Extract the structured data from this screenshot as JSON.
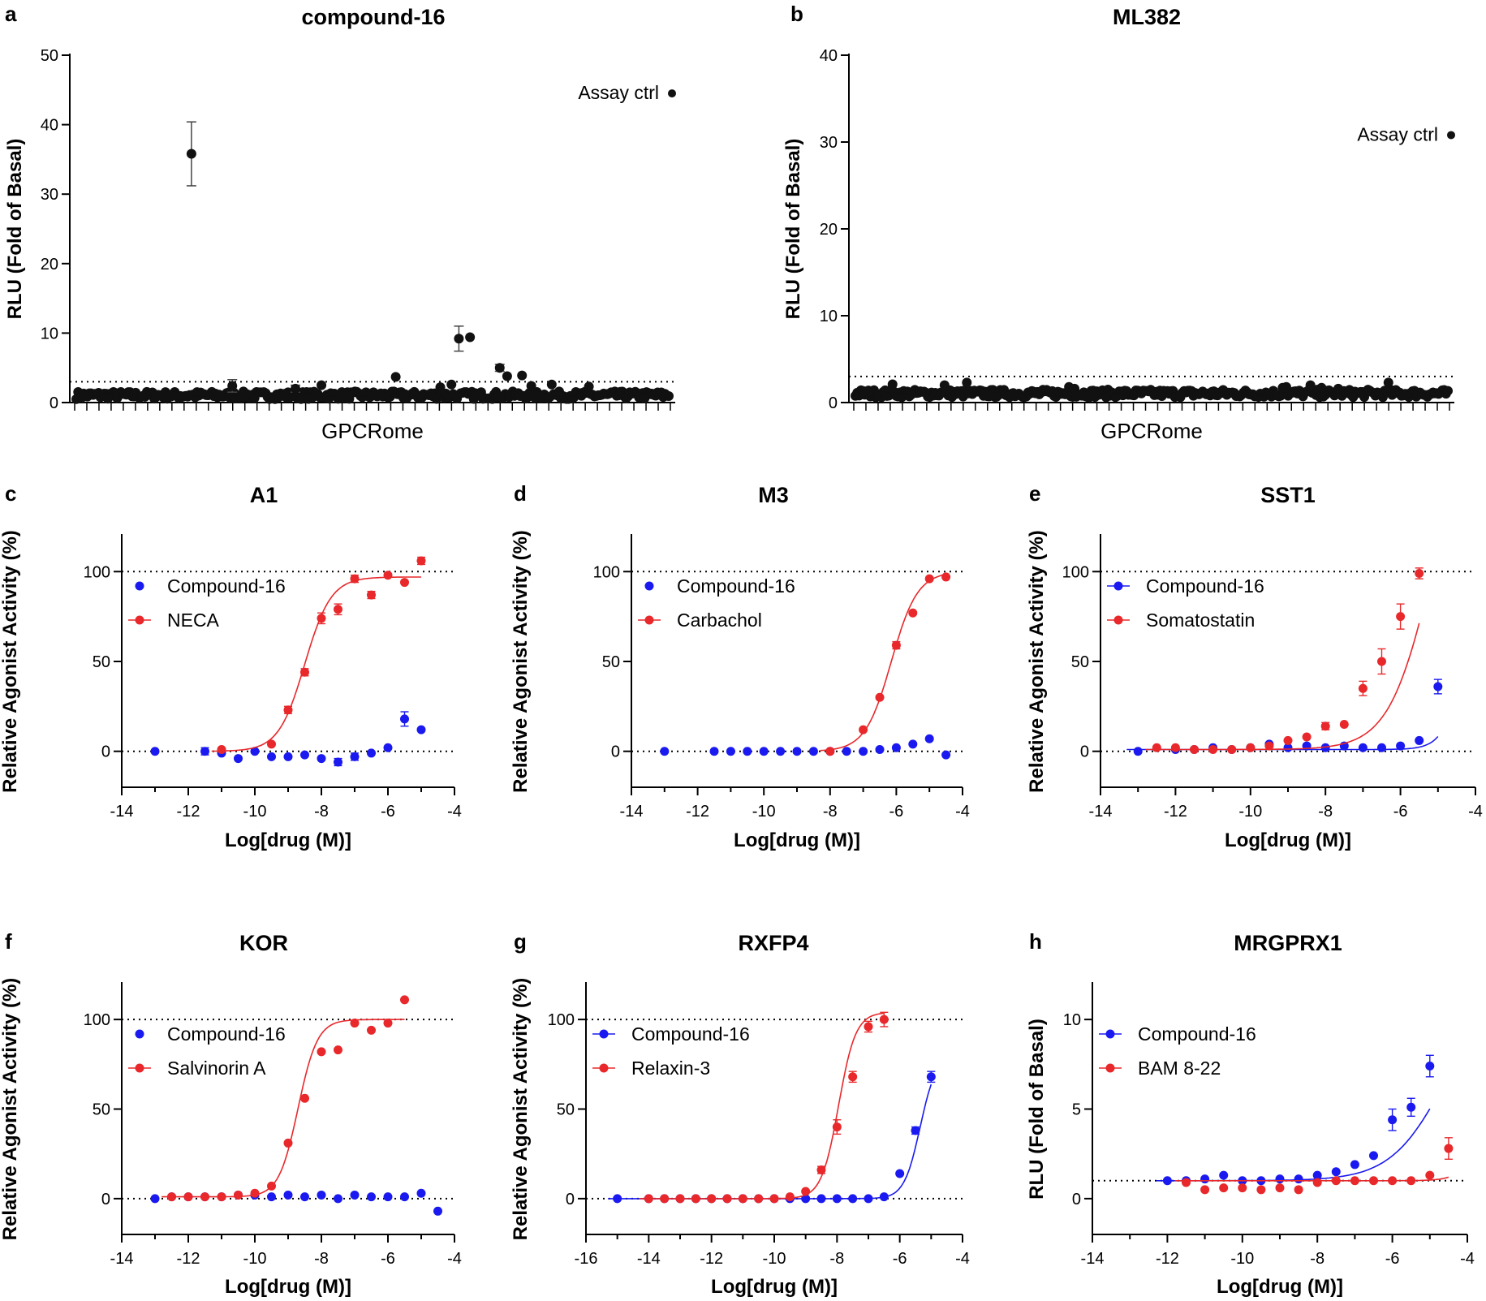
{
  "chart_data": [
    {
      "type": "scatter",
      "panel": "a",
      "title": "compound-16",
      "xlabel": "GPCRome",
      "ylabel": "RLU (Fold of Basal)",
      "ylim": [
        0,
        50
      ],
      "yticks": [
        0,
        10,
        20,
        30,
        40,
        50
      ],
      "reference_line": 3,
      "n_receptors": 320,
      "baseline_range": [
        0.5,
        1.6
      ],
      "notable_points": [
        {
          "index": 62,
          "y": 35.8,
          "err": 4.6
        },
        {
          "index": 84,
          "y": 2.4,
          "err": 0.9
        },
        {
          "index": 118,
          "y": 2.0,
          "err": 0.5
        },
        {
          "index": 132,
          "y": 2.5
        },
        {
          "index": 172,
          "y": 3.7
        },
        {
          "index": 196,
          "y": 2.2
        },
        {
          "index": 202,
          "y": 2.6
        },
        {
          "index": 206,
          "y": 9.2,
          "err": 1.8
        },
        {
          "index": 212,
          "y": 9.4
        },
        {
          "index": 228,
          "y": 5.0,
          "err": 0.5
        },
        {
          "index": 232,
          "y": 3.8
        },
        {
          "index": 240,
          "y": 3.9
        },
        {
          "index": 245,
          "y": 2.4
        },
        {
          "index": 256,
          "y": 2.6
        },
        {
          "index": 276,
          "y": 2.3
        }
      ],
      "annotation": {
        "text": "Assay ctrl",
        "y": 44.5,
        "err": 0.5
      }
    },
    {
      "type": "scatter",
      "panel": "b",
      "title": "ML382",
      "xlabel": "GPCRome",
      "ylabel": "RLU (Fold of Basal)",
      "ylim": [
        0,
        40
      ],
      "yticks": [
        0,
        10,
        20,
        30,
        40
      ],
      "reference_line": 3,
      "n_receptors": 320,
      "baseline_range": [
        0.6,
        1.5
      ],
      "notable_points": [
        {
          "index": 20,
          "y": 2.1
        },
        {
          "index": 48,
          "y": 2.0
        },
        {
          "index": 60,
          "y": 2.3
        },
        {
          "index": 115,
          "y": 1.8
        },
        {
          "index": 118,
          "y": 1.6
        },
        {
          "index": 232,
          "y": 1.8
        },
        {
          "index": 230,
          "y": 1.7
        },
        {
          "index": 245,
          "y": 2.0
        },
        {
          "index": 251,
          "y": 1.7
        },
        {
          "index": 260,
          "y": 1.6
        },
        {
          "index": 287,
          "y": 2.3
        }
      ],
      "annotation": {
        "text": "Assay ctrl",
        "y": 30.8
      }
    },
    {
      "type": "line",
      "panel": "c",
      "title": "A1",
      "xlabel": "Log[drug (M)]",
      "ylabel": "Relative Agonist Activity (%)",
      "xlim": [
        -14,
        -4
      ],
      "ylim": [
        -20,
        120
      ],
      "xticks": [
        -14,
        -12,
        -10,
        -8,
        -6,
        -4
      ],
      "yticks": [
        0,
        50,
        100
      ],
      "reference_lines": [
        0,
        100
      ],
      "series": [
        {
          "name": "Compound-16",
          "color": "#1a1af0",
          "legend_line": false,
          "x": [
            -13,
            -11.5,
            -11,
            -10.5,
            -10,
            -9.5,
            -9,
            -8.5,
            -8,
            -7.5,
            -7,
            -6.5,
            -6,
            -5.5,
            -5
          ],
          "y": [
            0,
            0,
            -1,
            -4,
            0,
            -3,
            -3,
            -2,
            -4,
            -6,
            -3,
            -1,
            2,
            18,
            12
          ],
          "err": [
            0,
            2,
            0,
            0,
            0,
            0,
            0,
            0,
            0,
            2,
            2,
            0,
            0,
            4,
            0
          ]
        },
        {
          "name": "NECA",
          "color": "#e8282b",
          "legend_line": true,
          "x": [
            -11,
            -9.5,
            -9,
            -8.5,
            -8,
            -7.5,
            -7,
            -6.5,
            -6,
            -5.5,
            -5
          ],
          "y": [
            1,
            4,
            23,
            44,
            74,
            79,
            96,
            87,
            98,
            94,
            106
          ],
          "err": [
            0,
            0,
            2,
            2,
            3,
            3,
            2,
            2,
            0,
            0,
            2
          ],
          "fit": {
            "bottom": 0,
            "top": 97,
            "logec50": -8.5,
            "hill": 1.1
          }
        }
      ]
    },
    {
      "type": "line",
      "panel": "d",
      "title": "M3",
      "xlabel": "Log[drug (M)]",
      "ylabel": "Relative Agonist Activity (%)",
      "xlim": [
        -14,
        -4
      ],
      "ylim": [
        -20,
        120
      ],
      "xticks": [
        -14,
        -12,
        -10,
        -8,
        -6,
        -4
      ],
      "yticks": [
        0,
        50,
        100
      ],
      "reference_lines": [
        0,
        100
      ],
      "series": [
        {
          "name": "Compound-16",
          "color": "#1a1af0",
          "legend_line": false,
          "x": [
            -13,
            -11.5,
            -11,
            -10.5,
            -10,
            -9.5,
            -9,
            -8.5,
            -8,
            -7.5,
            -7,
            -6.5,
            -6,
            -5.5,
            -5,
            -4.5
          ],
          "y": [
            0,
            0,
            0,
            0,
            0,
            0,
            0,
            0,
            0,
            0,
            0,
            1,
            2,
            4,
            7,
            -2
          ],
          "err": []
        },
        {
          "name": "Carbachol",
          "color": "#e8282b",
          "legend_line": true,
          "x": [
            -8,
            -7,
            -6.5,
            -6,
            -5.5,
            -5,
            -4.5
          ],
          "y": [
            0,
            12,
            30,
            59,
            77,
            96,
            97
          ],
          "err": [
            0,
            0,
            0,
            2,
            0,
            0,
            0
          ],
          "fit": {
            "bottom": 0,
            "top": 100,
            "logec50": -6.15,
            "hill": 1.1
          }
        }
      ]
    },
    {
      "type": "line",
      "panel": "e",
      "title": "SST1",
      "xlabel": "Log[drug (M)]",
      "ylabel": "Relative Agonist Activity (%)",
      "xlim": [
        -14,
        -4
      ],
      "ylim": [
        -20,
        120
      ],
      "xticks": [
        -14,
        -12,
        -10,
        -8,
        -6,
        -4
      ],
      "yticks": [
        0,
        50,
        100
      ],
      "reference_lines": [
        0,
        100
      ],
      "series": [
        {
          "name": "Compound-16",
          "color": "#1a1af0",
          "legend_line": true,
          "x": [
            -13,
            -12,
            -11.5,
            -11,
            -10.5,
            -10,
            -9.5,
            -9,
            -8.5,
            -8,
            -7.5,
            -7,
            -6.5,
            -6,
            -5.5,
            -5
          ],
          "y": [
            0,
            1,
            1,
            2,
            1,
            2,
            4,
            2,
            3,
            2,
            3,
            2,
            2,
            3,
            6,
            36
          ],
          "err": [
            0,
            0,
            0,
            0,
            0,
            0,
            0,
            0,
            0,
            0,
            0,
            0,
            0,
            0,
            0,
            4
          ],
          "fit": {
            "bottom": 1,
            "top": 200,
            "logec50": -4.05,
            "hill": 1.5
          }
        },
        {
          "name": "Somatostatin",
          "color": "#e8282b",
          "legend_line": true,
          "x": [
            -12.5,
            -12,
            -11.5,
            -11,
            -10.5,
            -10,
            -9.5,
            -9,
            -8.5,
            -8,
            -7.5,
            -7,
            -6.5,
            -6,
            -5.5
          ],
          "y": [
            2,
            2,
            1,
            1,
            1,
            2,
            3,
            6,
            8,
            14,
            15,
            35,
            50,
            75,
            99
          ],
          "err": [
            0,
            0,
            0,
            0,
            0,
            0,
            0,
            0,
            0,
            2,
            0,
            4,
            7,
            7,
            3
          ],
          "fit": {
            "bottom": 1,
            "top": 200,
            "logec50": -5.15,
            "hill": 0.75
          }
        }
      ]
    },
    {
      "type": "line",
      "panel": "f",
      "title": "KOR",
      "xlabel": "Log[drug (M)]",
      "ylabel": "Relative Agonist Activity (%)",
      "xlim": [
        -14,
        -4
      ],
      "ylim": [
        -20,
        120
      ],
      "xticks": [
        -14,
        -12,
        -10,
        -8,
        -6,
        -4
      ],
      "yticks": [
        0,
        50,
        100
      ],
      "reference_lines": [
        0,
        100
      ],
      "series": [
        {
          "name": "Compound-16",
          "color": "#1a1af0",
          "legend_line": false,
          "x": [
            -13,
            -12.5,
            -12,
            -11.5,
            -11,
            -10.5,
            -10,
            -9.5,
            -9,
            -8.5,
            -8,
            -7.5,
            -7,
            -6.5,
            -6,
            -5.5,
            -5,
            -4.5
          ],
          "y": [
            0,
            1,
            1,
            1,
            1,
            2,
            2,
            1,
            2,
            1,
            2,
            0,
            2,
            1,
            1,
            1,
            3,
            -7
          ],
          "err": []
        },
        {
          "name": "Salvinorin A",
          "color": "#e8282b",
          "legend_line": true,
          "x": [
            -12.5,
            -12,
            -11.5,
            -11,
            -10.5,
            -10,
            -9.5,
            -9,
            -8.5,
            -8,
            -7.5,
            -7,
            -6.5,
            -6,
            -5.5
          ],
          "y": [
            1,
            1,
            1,
            1,
            2,
            3,
            7,
            31,
            56,
            82,
            83,
            98,
            94,
            98,
            111
          ],
          "err": [],
          "fit": {
            "bottom": 1,
            "top": 100,
            "logec50": -8.7,
            "hill": 1.5
          }
        }
      ]
    },
    {
      "type": "line",
      "panel": "g",
      "title": "RXFP4",
      "xlabel": "Log[drug (M)]",
      "ylabel": "Relative Agonist Activity (%)",
      "xlim": [
        -16,
        -4
      ],
      "ylim": [
        -20,
        120
      ],
      "xticks": [
        -16,
        -14,
        -12,
        -10,
        -8,
        -6,
        -4
      ],
      "yticks": [
        0,
        50,
        100
      ],
      "reference_lines": [
        0,
        100
      ],
      "series": [
        {
          "name": "Compound-16",
          "color": "#1a1af0",
          "legend_line": true,
          "x": [
            -15,
            -14,
            -13.5,
            -13,
            -12.5,
            -12,
            -11.5,
            -11,
            -10.5,
            -10,
            -9.5,
            -9,
            -8.5,
            -8,
            -7.5,
            -7,
            -6.5,
            -6,
            -5.5,
            -5
          ],
          "y": [
            0,
            0,
            0,
            0,
            0,
            0,
            0,
            0,
            0,
            0,
            0,
            0,
            0,
            0,
            0,
            0,
            1,
            14,
            38,
            68
          ],
          "err": [
            0,
            0,
            0,
            0,
            0,
            0,
            0,
            0,
            0,
            0,
            0,
            0,
            0,
            0,
            0,
            0,
            0,
            0,
            2,
            3
          ],
          "fit": {
            "bottom": 0,
            "top": 80,
            "logec50": -5.35,
            "hill": 1.7
          }
        },
        {
          "name": "Relaxin-3",
          "color": "#e8282b",
          "legend_line": true,
          "x": [
            -14,
            -13.5,
            -13,
            -12.5,
            -12,
            -11.5,
            -11,
            -10.5,
            -10,
            -9.5,
            -9,
            -8.5,
            -8,
            -7.5,
            -7,
            -6.5
          ],
          "y": [
            0,
            0,
            0,
            0,
            0,
            0,
            0,
            0,
            0,
            1,
            4,
            16,
            40,
            68,
            96,
            100
          ],
          "err": [
            0,
            0,
            0,
            0,
            0,
            0,
            0,
            0,
            0,
            0,
            0,
            2,
            4,
            3,
            3,
            4
          ],
          "fit": {
            "bottom": 0,
            "top": 104,
            "logec50": -7.95,
            "hill": 1.6
          }
        }
      ]
    },
    {
      "type": "line",
      "panel": "h",
      "title": "MRGPRX1",
      "xlabel": "Log[drug (M)]",
      "ylabel": "RLU (Fold of Basal)",
      "xlim": [
        -14,
        -4
      ],
      "ylim": [
        -2,
        12
      ],
      "xticks": [
        -14,
        -12,
        -10,
        -8,
        -6,
        -4
      ],
      "yticks": [
        0,
        5,
        10
      ],
      "reference_lines": [
        1
      ],
      "series": [
        {
          "name": "Compound-16",
          "color": "#1a1af0",
          "legend_line": true,
          "x": [
            -12,
            -11.5,
            -11,
            -10.5,
            -10,
            -9.5,
            -9,
            -8.5,
            -8,
            -7.5,
            -7,
            -6.5,
            -6,
            -5.5,
            -5
          ],
          "y": [
            1,
            1,
            1.1,
            1.3,
            1,
            1,
            1.1,
            1.1,
            1.3,
            1.5,
            1.9,
            2.4,
            4.4,
            5.1,
            7.4
          ],
          "err": [
            0,
            0,
            0,
            0,
            0,
            0,
            0,
            0,
            0,
            0,
            0,
            0,
            0.6,
            0.5,
            0.6
          ],
          "fit": {
            "bottom": 1,
            "top": 12,
            "logec50": -4.6,
            "hill": 0.6
          }
        },
        {
          "name": "BAM 8-22",
          "color": "#e8282b",
          "legend_line": true,
          "x": [
            -11.5,
            -11,
            -10.5,
            -10,
            -9.5,
            -9,
            -8.5,
            -8,
            -7.5,
            -7,
            -6.5,
            -6,
            -5.5,
            -5,
            -4.5
          ],
          "y": [
            0.9,
            0.5,
            0.6,
            0.6,
            0.5,
            0.6,
            0.5,
            0.9,
            1,
            1,
            1,
            1,
            1,
            1.3,
            2.8
          ],
          "err": [
            0,
            0,
            0,
            0,
            0,
            0,
            0,
            0,
            0,
            0,
            0,
            0,
            0,
            0,
            0.6
          ],
          "fit": {
            "bottom": 1,
            "top": 10,
            "logec50": -3.4,
            "hill": 1.5
          }
        }
      ]
    }
  ]
}
